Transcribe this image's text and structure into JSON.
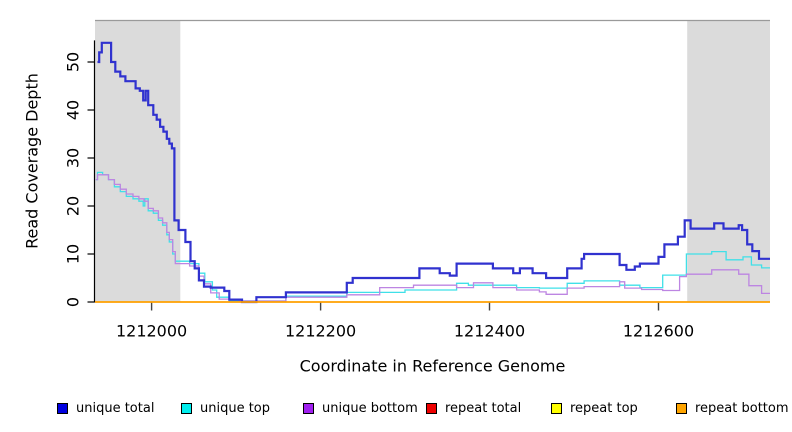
{
  "chart_data": {
    "type": "line",
    "subtype": "step",
    "title": "",
    "xlabel": "Coordinate in Reference Genome",
    "ylabel": "Read Coverage Depth",
    "x_range": [
      1211933,
      1212732
    ],
    "ylim": [
      0,
      58
    ],
    "x_ticks": [
      1212000,
      1212200,
      1212400,
      1212600
    ],
    "y_ticks": [
      0,
      10,
      20,
      30,
      40,
      50
    ],
    "grid": false,
    "legend_position": "bottom",
    "shade_color": "#dbdbdb",
    "frame_top_color": "#9a9a9a",
    "shaded_regions": [
      [
        1211933,
        1212034
      ],
      [
        1212634,
        1212732
      ]
    ],
    "draw_order": [
      1,
      2,
      0,
      3,
      4,
      5
    ],
    "series": [
      {
        "name": "unique total",
        "legend_color": "#0000e0",
        "line_color": "#3032cf",
        "line_width": 2.2,
        "points": [
          [
            1211936,
            50
          ],
          [
            1211938,
            52
          ],
          [
            1211941,
            54
          ],
          [
            1211952,
            50
          ],
          [
            1211957,
            48
          ],
          [
            1211963,
            47
          ],
          [
            1211969,
            46
          ],
          [
            1211981,
            44.5
          ],
          [
            1211986,
            44
          ],
          [
            1211990,
            42
          ],
          [
            1211993,
            44
          ],
          [
            1211996,
            41
          ],
          [
            1212002,
            39
          ],
          [
            1212006,
            38
          ],
          [
            1212010,
            36.5
          ],
          [
            1212014,
            35.5
          ],
          [
            1212018,
            34
          ],
          [
            1212021,
            33
          ],
          [
            1212024,
            32
          ],
          [
            1212027,
            17
          ],
          [
            1212032,
            15
          ],
          [
            1212040,
            12.5
          ],
          [
            1212046,
            8.5
          ],
          [
            1212051,
            7
          ],
          [
            1212056,
            4.5
          ],
          [
            1212062,
            3.2
          ],
          [
            1212070,
            3
          ],
          [
            1212086,
            2.3
          ],
          [
            1212092,
            0.5
          ],
          [
            1212107,
            0
          ],
          [
            1212124,
            1
          ],
          [
            1212159,
            2
          ],
          [
            1212231,
            4
          ],
          [
            1212238,
            5
          ],
          [
            1212317,
            7
          ],
          [
            1212341,
            6
          ],
          [
            1212353,
            5.5
          ],
          [
            1212361,
            8
          ],
          [
            1212404,
            7
          ],
          [
            1212428,
            6
          ],
          [
            1212436,
            7
          ],
          [
            1212451,
            6
          ],
          [
            1212467,
            5
          ],
          [
            1212492,
            7
          ],
          [
            1212509,
            9
          ],
          [
            1212512,
            10
          ],
          [
            1212554,
            7.7
          ],
          [
            1212562,
            6.7
          ],
          [
            1212572,
            7.4
          ],
          [
            1212578,
            8
          ],
          [
            1212600,
            9.4
          ],
          [
            1212607,
            12
          ],
          [
            1212623,
            13.6
          ],
          [
            1212631,
            17
          ],
          [
            1212638,
            15.3
          ],
          [
            1212666,
            16.4
          ],
          [
            1212677,
            15.3
          ],
          [
            1212695,
            16
          ],
          [
            1212699,
            15
          ],
          [
            1212705,
            12
          ],
          [
            1212711,
            10.6
          ],
          [
            1212719,
            9
          ]
        ]
      },
      {
        "name": "unique top",
        "legend_color": "#00eeee",
        "line_color": "#3fe0e8",
        "line_width": 1.3,
        "points": [
          [
            1211934,
            25.5
          ],
          [
            1211936,
            27
          ],
          [
            1211942,
            26.5
          ],
          [
            1211949,
            25.5
          ],
          [
            1211956,
            24
          ],
          [
            1211963,
            23
          ],
          [
            1211970,
            22
          ],
          [
            1211978,
            21.5
          ],
          [
            1211985,
            21
          ],
          [
            1211990,
            20
          ],
          [
            1211992,
            21.5
          ],
          [
            1211996,
            19
          ],
          [
            1212002,
            18.5
          ],
          [
            1212008,
            17
          ],
          [
            1212013,
            16
          ],
          [
            1212018,
            14
          ],
          [
            1212021,
            12.5
          ],
          [
            1212025,
            10
          ],
          [
            1212028,
            8.5
          ],
          [
            1212045,
            8
          ],
          [
            1212056,
            6
          ],
          [
            1212063,
            4.2
          ],
          [
            1212072,
            2.5
          ],
          [
            1212077,
            1
          ],
          [
            1212092,
            0.2
          ],
          [
            1212159,
            1.2
          ],
          [
            1212231,
            2
          ],
          [
            1212300,
            2.5
          ],
          [
            1212361,
            3.9
          ],
          [
            1212375,
            3.5
          ],
          [
            1212432,
            3
          ],
          [
            1212459,
            2.9
          ],
          [
            1212492,
            3.9
          ],
          [
            1212512,
            4.4
          ],
          [
            1212554,
            3.5
          ],
          [
            1212578,
            3
          ],
          [
            1212605,
            5.6
          ],
          [
            1212633,
            10
          ],
          [
            1212663,
            10.5
          ],
          [
            1212680,
            8.8
          ],
          [
            1212700,
            9.4
          ],
          [
            1212710,
            7.7
          ],
          [
            1212722,
            7.1
          ]
        ]
      },
      {
        "name": "unique bottom",
        "legend_color": "#a020f0",
        "line_color": "#bd85e2",
        "line_width": 1.3,
        "points": [
          [
            1211934,
            25.5
          ],
          [
            1211936,
            26.5
          ],
          [
            1211949,
            25.5
          ],
          [
            1211956,
            24.5
          ],
          [
            1211963,
            23.5
          ],
          [
            1211970,
            22.5
          ],
          [
            1211978,
            22
          ],
          [
            1211985,
            21.5
          ],
          [
            1211991,
            21
          ],
          [
            1211996,
            19.5
          ],
          [
            1212002,
            19
          ],
          [
            1212008,
            17.5
          ],
          [
            1212013,
            16.5
          ],
          [
            1212018,
            14.5
          ],
          [
            1212021,
            13
          ],
          [
            1212025,
            10.5
          ],
          [
            1212028,
            8
          ],
          [
            1212045,
            7.5
          ],
          [
            1212056,
            5.4
          ],
          [
            1212062,
            3.8
          ],
          [
            1212070,
            1.9
          ],
          [
            1212080,
            0.6
          ],
          [
            1212104,
            0.2
          ],
          [
            1212159,
            1
          ],
          [
            1212231,
            1.5
          ],
          [
            1212270,
            3
          ],
          [
            1212310,
            3.5
          ],
          [
            1212361,
            3
          ],
          [
            1212381,
            4
          ],
          [
            1212404,
            3
          ],
          [
            1212432,
            2.5
          ],
          [
            1212459,
            2.1
          ],
          [
            1212467,
            1.6
          ],
          [
            1212492,
            2.9
          ],
          [
            1212512,
            3.2
          ],
          [
            1212554,
            4.2
          ],
          [
            1212560,
            2.9
          ],
          [
            1212580,
            2.6
          ],
          [
            1212605,
            2.4
          ],
          [
            1212625,
            5.3
          ],
          [
            1212633,
            5.8
          ],
          [
            1212663,
            6.7
          ],
          [
            1212695,
            5.8
          ],
          [
            1212707,
            3.4
          ],
          [
            1212722,
            1.8
          ]
        ]
      },
      {
        "name": "repeat total",
        "legend_color": "#ee0000",
        "line_color": "#ee0000",
        "line_width": 1,
        "points": [
          [
            1211933,
            0
          ]
        ]
      },
      {
        "name": "repeat top",
        "legend_color": "#ffff00",
        "line_color": "#ffff00",
        "line_width": 1,
        "points": [
          [
            1211933,
            0
          ]
        ]
      },
      {
        "name": "repeat bottom",
        "legend_color": "#ffa500",
        "line_color": "#ffa000",
        "line_width": 1.8,
        "points": [
          [
            1211933,
            0
          ]
        ]
      }
    ]
  }
}
